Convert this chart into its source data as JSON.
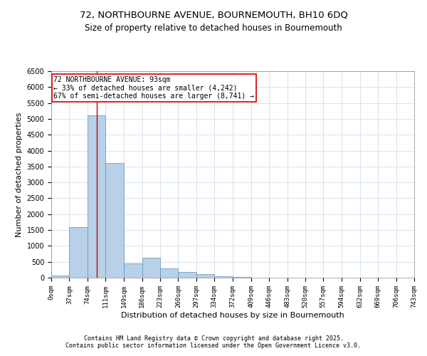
{
  "title_line1": "72, NORTHBOURNE AVENUE, BOURNEMOUTH, BH10 6DQ",
  "title_line2": "Size of property relative to detached houses in Bournemouth",
  "xlabel": "Distribution of detached houses by size in Bournemouth",
  "ylabel": "Number of detached properties",
  "bar_color": "#b8d0e8",
  "bar_edge_color": "#6090b8",
  "background_color": "#ffffff",
  "grid_color": "#c8d8ec",
  "annotation_text": "72 NORTHBOURNE AVENUE: 93sqm\n← 33% of detached houses are smaller (4,242)\n67% of semi-detached houses are larger (8,741) →",
  "vline_x": 93,
  "vline_color": "#cc0000",
  "annotation_box_color": "#ffffff",
  "annotation_box_edge": "#cc0000",
  "bin_edges": [
    0,
    37,
    74,
    111,
    149,
    186,
    223,
    260,
    297,
    334,
    372,
    409,
    446,
    483,
    520,
    557,
    594,
    632,
    669,
    706,
    743
  ],
  "bar_heights": [
    75,
    1600,
    5100,
    3600,
    450,
    620,
    290,
    175,
    110,
    50,
    20,
    10,
    5,
    3,
    2,
    2,
    1,
    1,
    1,
    1
  ],
  "ylim": [
    0,
    6500
  ],
  "xlim": [
    0,
    743
  ],
  "yticks": [
    0,
    500,
    1000,
    1500,
    2000,
    2500,
    3000,
    3500,
    4000,
    4500,
    5000,
    5500,
    6000,
    6500
  ],
  "tick_labels": [
    "0sqm",
    "37sqm",
    "74sqm",
    "111sqm",
    "149sqm",
    "186sqm",
    "223sqm",
    "260sqm",
    "297sqm",
    "334sqm",
    "372sqm",
    "409sqm",
    "446sqm",
    "483sqm",
    "520sqm",
    "557sqm",
    "594sqm",
    "632sqm",
    "669sqm",
    "706sqm",
    "743sqm"
  ],
  "footer": "Contains HM Land Registry data © Crown copyright and database right 2025.\nContains public sector information licensed under the Open Government Licence v3.0.",
  "title_fontsize": 9.5,
  "subtitle_fontsize": 8.5,
  "tick_label_fontsize": 6.5,
  "axis_label_fontsize": 8,
  "footer_fontsize": 6,
  "annotation_fontsize": 7
}
